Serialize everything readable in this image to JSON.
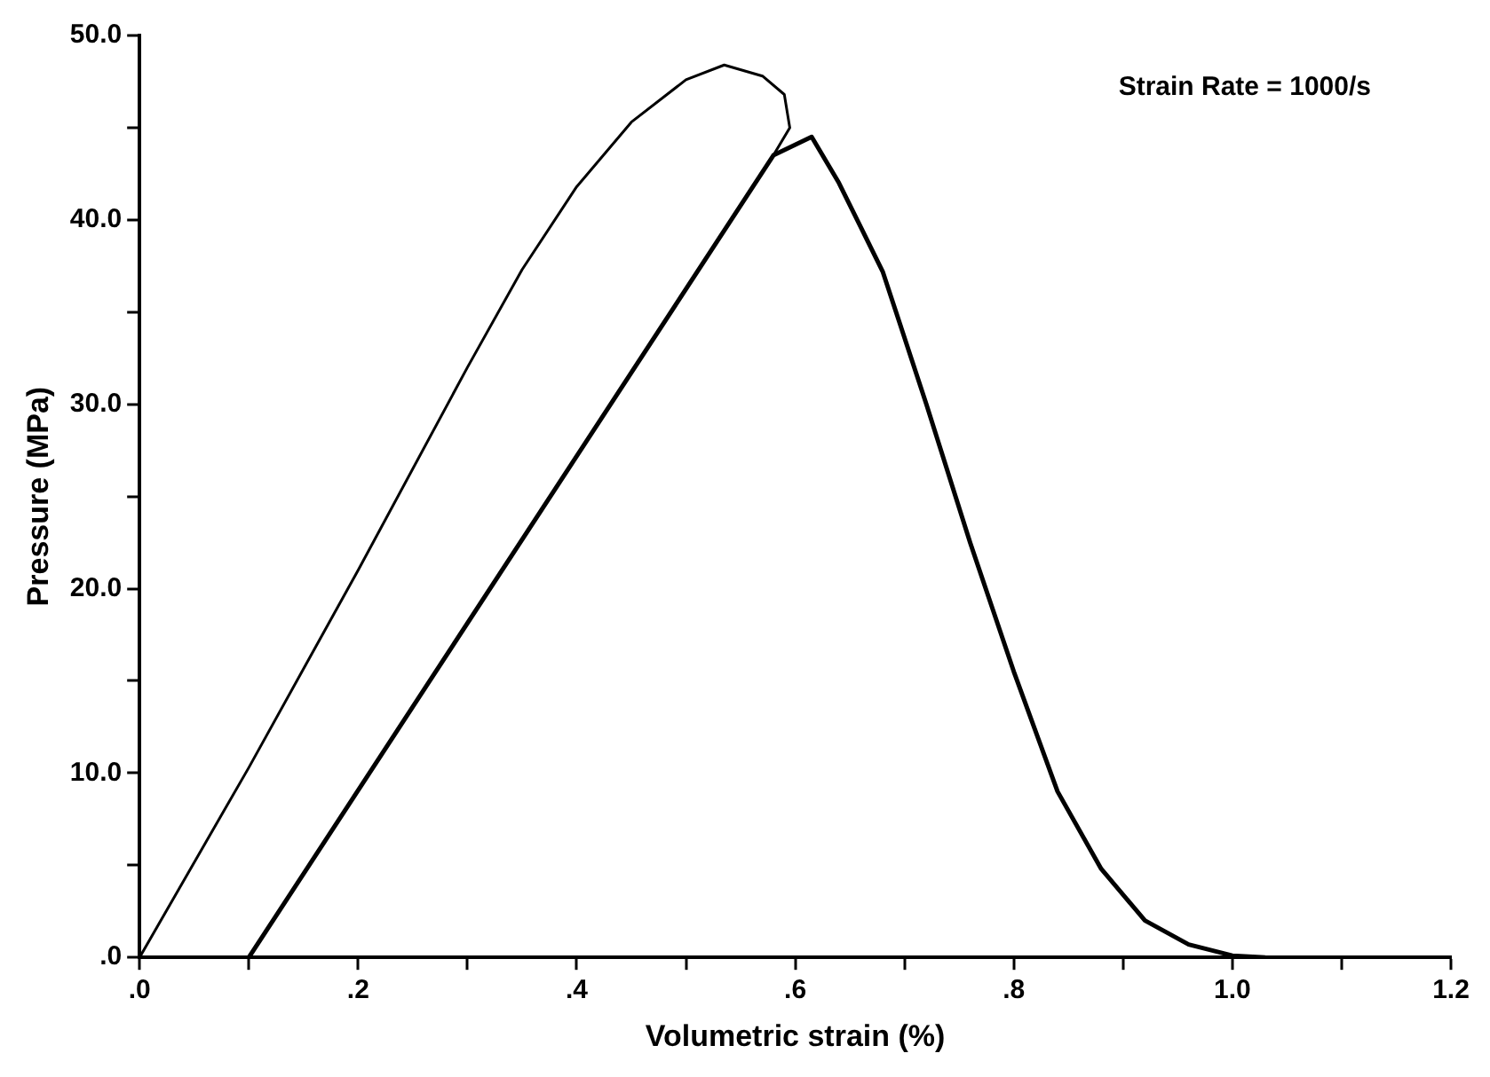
{
  "chart_data": {
    "type": "line",
    "xlabel": "Volumetric strain (%)",
    "ylabel": "Pressure (MPa)",
    "annotations": [
      "Strain Rate = 1000/s"
    ],
    "xlim": [
      0,
      1.2
    ],
    "ylim": [
      0,
      50
    ],
    "xticks": [
      {
        "value": 0,
        "label": ".0"
      },
      {
        "value": 0.1,
        "label": null
      },
      {
        "value": 0.2,
        "label": ".2"
      },
      {
        "value": 0.3,
        "label": null
      },
      {
        "value": 0.4,
        "label": ".4"
      },
      {
        "value": 0.5,
        "label": null
      },
      {
        "value": 0.6,
        "label": ".6"
      },
      {
        "value": 0.7,
        "label": null
      },
      {
        "value": 0.8,
        "label": ".8"
      },
      {
        "value": 0.9,
        "label": null
      },
      {
        "value": 1,
        "label": "1.0"
      },
      {
        "value": 1.1,
        "label": null
      },
      {
        "value": 1.2,
        "label": "1.2"
      }
    ],
    "yticks": [
      {
        "value": 0,
        "label": ".0"
      },
      {
        "value": 5,
        "label": null
      },
      {
        "value": 10,
        "label": "10.0"
      },
      {
        "value": 15,
        "label": null
      },
      {
        "value": 20,
        "label": "20.0"
      },
      {
        "value": 25,
        "label": null
      },
      {
        "value": 30,
        "label": "30.0"
      },
      {
        "value": 35,
        "label": null
      },
      {
        "value": 40,
        "label": "40.0"
      },
      {
        "value": 45,
        "label": null
      },
      {
        "value": 50,
        "label": "50.0"
      }
    ],
    "grid": false,
    "legend": false,
    "marker": "none",
    "line_style": "solid",
    "series": [
      {
        "color": "#000000",
        "x": [
          0,
          0.1,
          0.2,
          0.3,
          0.35,
          0.4,
          0.45,
          0.5,
          0.535,
          0.57,
          0.59,
          0.595,
          0.58
        ],
        "values": [
          0,
          10.3,
          21,
          32,
          37.3,
          41.8,
          45.3,
          47.6,
          48.4,
          47.8,
          46.8,
          45,
          43.5
        ]
      },
      {
        "color": "#000000",
        "x": [
          0.1,
          0.58,
          0.615,
          0.64,
          0.68,
          0.72,
          0.76,
          0.8,
          0.84,
          0.88,
          0.92,
          0.96,
          1,
          1.03
        ],
        "values": [
          0,
          43.5,
          44.5,
          42,
          37.2,
          30,
          22.5,
          15.5,
          9,
          4.8,
          2,
          0.7,
          0.1,
          0
        ]
      }
    ]
  }
}
